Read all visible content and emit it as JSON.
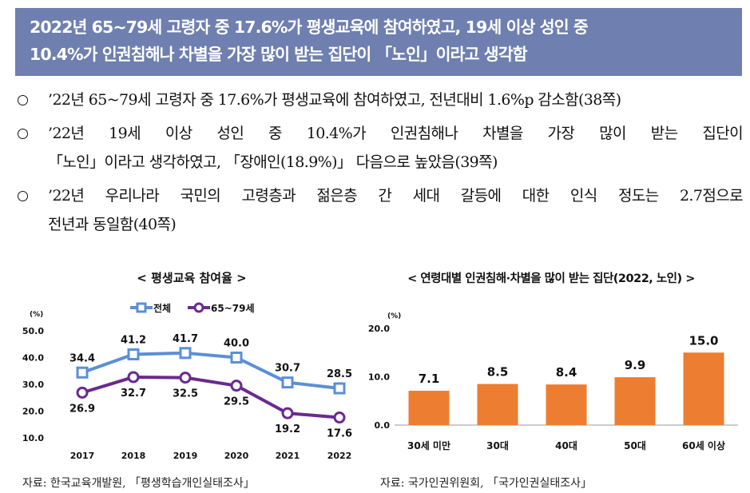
{
  "header": {
    "line1": "2022년 65~79세 고령자 중 17.6%가 평생교육에 참여하였고, 19세 이상 성인 중",
    "line2": "10.4%가 인권침해나 차별을 가장 많이 받는 집단이 「노인」이라고 생각함"
  },
  "bullets": [
    {
      "lines": [
        "’22년 65~79세 고령자 중 17.6%가 평생교육에 참여하였고, 전년대비 1.6%p 감소함(38쪽)"
      ]
    },
    {
      "lines": [
        "’22년 19세 이상 성인 중 10.4%가 인권침해나 차별을 가장 많이 받는 집단이",
        "「노인」이라고 생각하였고, 「장애인(18.9%)」 다음으로 높았음(39쪽)"
      ]
    },
    {
      "lines": [
        "’22년 우리나라 국민의 고령층과 젊은층 간 세대 갈등에 대한 인식 정도는 2.7점으로",
        "전년과 동일함(40쪽)"
      ]
    }
  ],
  "chart_data": [
    {
      "type": "line",
      "title": "< 평생교육 참여율 >",
      "ylabel": "(%)",
      "x": [
        "2017",
        "2018",
        "2019",
        "2020",
        "2021",
        "2022"
      ],
      "yticks": [
        "50.0",
        "40.0",
        "30.0",
        "20.0",
        "10.0"
      ],
      "ylim": [
        10,
        50
      ],
      "series": [
        {
          "name": "전체",
          "values": [
            34.4,
            41.2,
            41.7,
            40.0,
            30.7,
            28.5
          ],
          "labels": [
            "34.4",
            "41.2",
            "41.7",
            "40.0",
            "30.7",
            "28.5"
          ],
          "color": "#5b8fd6",
          "marker": "square"
        },
        {
          "name": "65~79세",
          "values": [
            26.9,
            32.7,
            32.5,
            29.5,
            19.2,
            17.6
          ],
          "labels": [
            "26.9",
            "32.7",
            "32.5",
            "29.5",
            "19.2",
            "17.6"
          ],
          "color": "#6a2a8e",
          "marker": "circle"
        }
      ],
      "legend": "top-center",
      "grid": false
    },
    {
      "type": "bar",
      "title": "< 연령대별 인권침해·차별을 많이 받는 집단(2022, 노인) >",
      "ylabel": "(%)",
      "categories": [
        "30세 미만",
        "30대",
        "40대",
        "50대",
        "60세 이상"
      ],
      "values": [
        7.1,
        8.5,
        8.4,
        9.9,
        15.0
      ],
      "labels": [
        "7.1",
        "8.5",
        "8.4",
        "9.9",
        "15.0"
      ],
      "yticks": [
        "20.0",
        "10.0",
        "0.0"
      ],
      "ylim": [
        0,
        20
      ],
      "color": "#ed7d31",
      "grid": false
    }
  ],
  "sources": {
    "left": "자료: 한국교육개발원, 「평생학습개인실태조사」",
    "right": "자료: 국가인권위원회, 「국가인권실태조사」"
  }
}
